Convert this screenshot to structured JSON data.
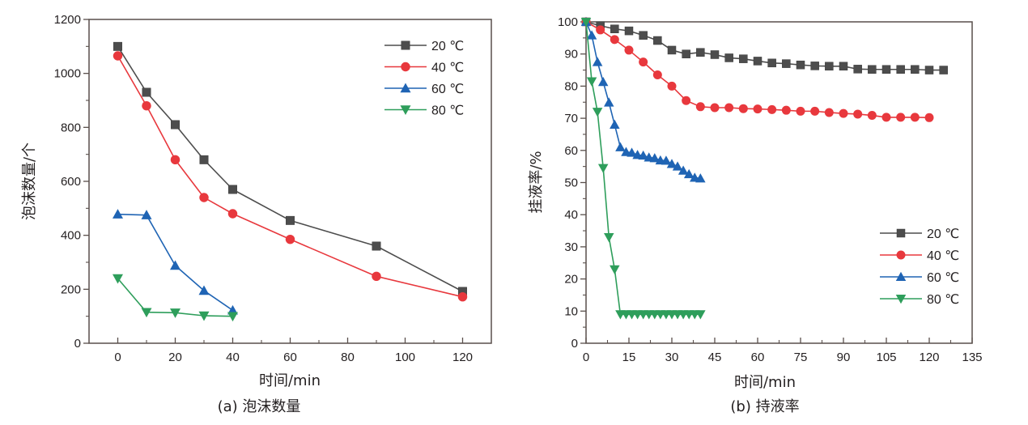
{
  "chart_data": [
    {
      "id": "a",
      "type": "line",
      "caption": "(a) 泡沫数量",
      "xlabel": "时间/min",
      "ylabel": "泡沫数量/个",
      "xlim": [
        -10,
        130
      ],
      "ylim": [
        0,
        1200
      ],
      "xticks": [
        0,
        20,
        40,
        60,
        80,
        100,
        120
      ],
      "xminor": [
        10,
        30,
        50,
        70,
        90,
        110
      ],
      "yticks": [
        0,
        200,
        400,
        600,
        800,
        1000,
        1200
      ],
      "yminor": [
        100,
        300,
        500,
        700,
        900,
        1100
      ],
      "legend_position": "top-right",
      "grid": false,
      "series": [
        {
          "name": "20 ℃",
          "color": "#4d4d4d",
          "marker": "square",
          "x": [
            0,
            10,
            20,
            30,
            40,
            60,
            90,
            120
          ],
          "y": [
            1100,
            930,
            810,
            680,
            570,
            455,
            360,
            192
          ]
        },
        {
          "name": "40 ℃",
          "color": "#e8383d",
          "marker": "circle",
          "x": [
            0,
            10,
            20,
            30,
            40,
            60,
            90,
            120
          ],
          "y": [
            1065,
            880,
            680,
            540,
            480,
            385,
            248,
            172
          ]
        },
        {
          "name": "60 ℃",
          "color": "#1f64b4",
          "marker": "triangle-up",
          "x": [
            0,
            10,
            20,
            30,
            40
          ],
          "y": [
            478,
            475,
            288,
            195,
            122
          ]
        },
        {
          "name": "80 ℃",
          "color": "#2e9e5b",
          "marker": "triangle-down",
          "x": [
            0,
            10,
            20,
            30,
            40
          ],
          "y": [
            240,
            115,
            113,
            102,
            100
          ]
        }
      ]
    },
    {
      "id": "b",
      "type": "line",
      "caption": "(b) 持液率",
      "xlabel": "时间/min",
      "ylabel": "挂液率/%",
      "xlim": [
        0,
        135
      ],
      "ylim": [
        0,
        100
      ],
      "xticks": [
        0,
        15,
        30,
        45,
        60,
        75,
        90,
        105,
        120,
        135
      ],
      "xminor": [
        7.5,
        22.5,
        37.5,
        52.5,
        67.5,
        82.5,
        97.5,
        112.5,
        127.5
      ],
      "yticks": [
        0,
        10,
        20,
        30,
        40,
        50,
        60,
        70,
        80,
        90,
        100
      ],
      "yminor": [
        5,
        15,
        25,
        35,
        45,
        55,
        65,
        75,
        85,
        95
      ],
      "legend_position": "center-right",
      "grid": false,
      "series": [
        {
          "name": "20 ℃",
          "color": "#4d4d4d",
          "marker": "square",
          "x": [
            0,
            5,
            10,
            15,
            20,
            25,
            30,
            35,
            40,
            45,
            50,
            55,
            60,
            65,
            70,
            75,
            80,
            85,
            90,
            95,
            100,
            105,
            110,
            115,
            120,
            125
          ],
          "y": [
            100,
            98.8,
            97.8,
            97.2,
            95.8,
            94.2,
            91.2,
            90.0,
            90.5,
            89.8,
            88.8,
            88.5,
            87.8,
            87.2,
            87.0,
            86.6,
            86.3,
            86.2,
            86.2,
            85.3,
            85.2,
            85.2,
            85.2,
            85.2,
            85.0,
            85.0
          ]
        },
        {
          "name": "40 ℃",
          "color": "#e8383d",
          "marker": "circle",
          "x": [
            0,
            5,
            10,
            15,
            20,
            25,
            30,
            35,
            40,
            45,
            50,
            55,
            60,
            65,
            70,
            75,
            80,
            85,
            90,
            95,
            100,
            105,
            110,
            115,
            120
          ],
          "y": [
            100,
            97.5,
            94.5,
            91.2,
            87.5,
            83.5,
            80.0,
            75.5,
            73.6,
            73.3,
            73.3,
            73.0,
            72.9,
            72.7,
            72.5,
            72.2,
            72.2,
            71.8,
            71.5,
            71.3,
            70.9,
            70.3,
            70.3,
            70.3,
            70.2
          ]
        },
        {
          "name": "60 ℃",
          "color": "#1f64b4",
          "marker": "triangle-up",
          "x": [
            0,
            2,
            4,
            6,
            8,
            10,
            12,
            14,
            16,
            18,
            20,
            22,
            24,
            26,
            28,
            30,
            32,
            34,
            36,
            38,
            40
          ],
          "y": [
            100,
            95.8,
            87.5,
            81.3,
            74.9,
            68.0,
            61.0,
            59.5,
            59.3,
            58.6,
            58.4,
            57.8,
            57.6,
            56.9,
            56.8,
            55.8,
            55.0,
            53.7,
            52.6,
            51.5,
            51.3
          ]
        },
        {
          "name": "80 ℃",
          "color": "#2e9e5b",
          "marker": "triangle-down",
          "x": [
            0,
            2,
            4,
            6,
            8,
            10,
            12,
            14,
            16,
            18,
            20,
            22,
            24,
            26,
            28,
            30,
            32,
            34,
            36,
            38,
            40
          ],
          "y": [
            100,
            81.5,
            72.0,
            54.5,
            33.0,
            23.0,
            9,
            9,
            9,
            9,
            9,
            9,
            9,
            9,
            9,
            9,
            9,
            9,
            9,
            9,
            9
          ]
        }
      ]
    }
  ]
}
